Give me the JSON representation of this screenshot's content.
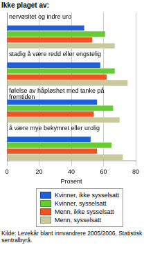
{
  "chart_data": {
    "type": "bar",
    "orientation": "horizontal",
    "title": "Ikke plaget av:",
    "categories": [
      "nervøsitet og indre uro",
      "stadig å være redd eller engstelig",
      "følelse av håpløshet med tanke på fremtiden",
      "å være mye bekymret eller urolig"
    ],
    "series": [
      {
        "name": "Kvinner, ikke sysselsatt",
        "color": "#1f5fd8",
        "values": [
          48,
          58,
          56,
          52
        ]
      },
      {
        "name": "Kvinner, sysselsatt",
        "color": "#66cc33",
        "values": [
          61,
          67,
          66,
          65
        ]
      },
      {
        "name": "Menn, ikke sysselsatt",
        "color": "#ee5522",
        "values": [
          53,
          62,
          54,
          56
        ]
      },
      {
        "name": "Menn, sysselsatt",
        "color": "#c9c99b",
        "values": [
          67,
          75,
          70,
          72
        ]
      }
    ],
    "x_label": "Prosent",
    "xlim": [
      0,
      80
    ],
    "xticks": [
      0,
      20,
      40,
      60,
      80
    ],
    "grid": true,
    "legend": "bottom",
    "annotations": [
      "Kilde: Levekår blant innvandrere 2005/2006, Statistisk sentralbyrå."
    ]
  }
}
